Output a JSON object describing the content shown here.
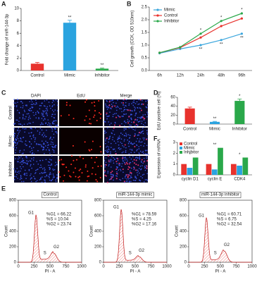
{
  "chart_data": [
    {
      "type": "bar",
      "letter": "A",
      "ylabel": "Fold change of miR-144-3p",
      "categories": [
        "Control",
        "Mimic",
        "Inhibitor"
      ],
      "values": [
        1.1,
        7.7,
        0.3
      ],
      "errors": [
        0.2,
        0.4,
        0.1
      ],
      "colors": [
        "#e8322d",
        "#2aa3df",
        "#2aa84a"
      ],
      "ylim": [
        0,
        10
      ],
      "yticks": [
        0,
        2,
        4,
        6,
        8,
        10
      ],
      "annotations": [
        {
          "at": "Mimic",
          "text": "**"
        },
        {
          "at": "Inhibitor",
          "text": "**"
        }
      ]
    },
    {
      "type": "line",
      "letter": "B",
      "ylabel": "Cell growth (CCK, OD 510nm)",
      "categories": [
        "6h",
        "12h",
        "24h",
        "48h",
        "96h"
      ],
      "series": [
        {
          "name": "Mimic",
          "color": "#3aa6dd",
          "values": [
            0.68,
            0.85,
            1.0,
            1.2,
            1.45
          ]
        },
        {
          "name": "Control",
          "color": "#e8322d",
          "values": [
            0.7,
            0.9,
            1.3,
            1.75,
            2.05
          ]
        },
        {
          "name": "Inhibitor",
          "color": "#2aa84a",
          "values": [
            0.7,
            0.92,
            1.45,
            1.95,
            2.25
          ]
        }
      ],
      "ylim": [
        0,
        2.5
      ],
      "yticks": [
        {
          "value": 0,
          "label": "0.0"
        },
        0.5,
        {
          "value": 1,
          "label": "1.0"
        },
        1.5,
        {
          "value": 2,
          "label": "2.0"
        },
        2.5
      ],
      "legend": "top-left",
      "annotations": [
        {
          "at": "24h",
          "above": "*",
          "below": "**"
        },
        {
          "at": "48h",
          "above": "*",
          "below": "**"
        },
        {
          "at": "96h",
          "above": "*",
          "below": "**"
        }
      ]
    },
    {
      "type": "bar",
      "letter": "D",
      "ylabel": "EdU positive cell (%)",
      "categories": [
        "Control",
        "Mimic",
        "Inhibitor"
      ],
      "values": [
        35,
        5,
        52
      ],
      "errors": [
        3,
        1,
        4
      ],
      "colors": [
        "#e8322d",
        "#2aa3df",
        "#2aa84a"
      ],
      "ylim": [
        0,
        60
      ],
      "yticks": [
        0,
        20,
        40,
        60
      ],
      "annotations": [
        {
          "at": "Mimic",
          "text": "**"
        },
        {
          "at": "Inhibitor",
          "text": "*"
        }
      ]
    },
    {
      "type": "grouped-bar",
      "letter": "F",
      "ylabel": "Expression of mRNA",
      "categories": [
        "cyclin D1",
        "cyclin E",
        "CDK4"
      ],
      "series": [
        {
          "name": "Control",
          "color": "#e8322d",
          "values": [
            1.0,
            1.0,
            1.0
          ]
        },
        {
          "name": "Mimic",
          "color": "#2aa3df",
          "values": [
            0.65,
            0.5,
            0.85
          ]
        },
        {
          "name": "Inhibitor",
          "color": "#2aa84a",
          "values": [
            1.6,
            2.5,
            1.6
          ]
        }
      ],
      "ylim": [
        0,
        3
      ],
      "yticks": [
        0,
        1,
        2,
        3
      ],
      "legend": "top-left",
      "annotations": [
        {
          "at": "cyclin D1",
          "text": "*"
        },
        {
          "at": "cyclin E",
          "text": "**"
        },
        {
          "at": "CDK4",
          "text": "*"
        }
      ]
    }
  ],
  "panel_c": {
    "letter": "C",
    "columns": [
      "DAPI",
      "EdU",
      "Merge"
    ],
    "rows": [
      "Control",
      "Mimic",
      "Inhibitor"
    ]
  },
  "panel_e": {
    "letter": "E",
    "xlabel": "PI - A",
    "ylabel": "Count",
    "xlim": [
      0,
      1000
    ],
    "xticks": [
      0,
      250,
      500,
      750,
      1000
    ],
    "ylim": [
      0,
      800
    ],
    "yticks": [
      0,
      200,
      400,
      600,
      800
    ],
    "plots": [
      {
        "title": "Control",
        "stats": [
          "%G1 = 66.22",
          "%S = 10.04",
          "%G2 = 23.74"
        ],
        "peaks": [
          "G1",
          "S",
          "G2"
        ]
      },
      {
        "title": "miR-144-3p mimic",
        "stats": [
          "%G1 = 78.59",
          "%S = 4.25",
          "%G2 = 17.16"
        ],
        "peaks": [
          "G1",
          "S",
          "G2"
        ]
      },
      {
        "title": "miR-144-3p inhibitor",
        "stats": [
          "%G1 = 60.71",
          "%S = 6.75",
          "%G2 = 32.54"
        ],
        "peaks": [
          "G1",
          "S",
          "G2"
        ]
      }
    ]
  }
}
